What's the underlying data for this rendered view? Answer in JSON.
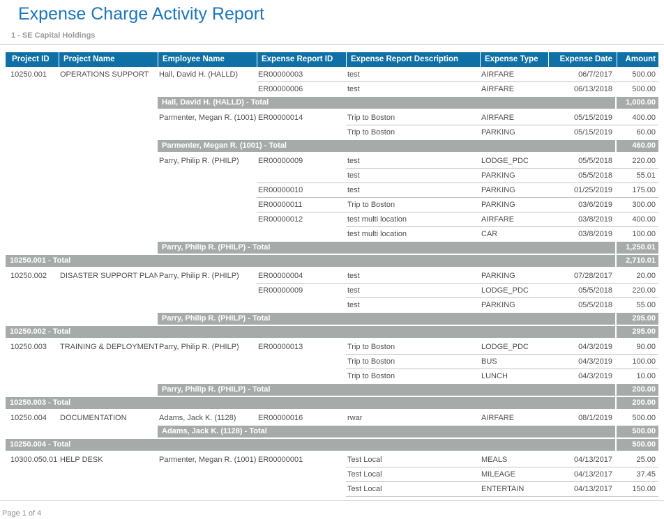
{
  "page": {
    "title": "Expense Charge Activity Report",
    "subtitle": "1 - SE Capital Holdings",
    "footer": "Page 1 of 4"
  },
  "colors": {
    "title_blue": "#1B76BD",
    "header_bar_blue": "#0F70A6",
    "total_bar_gray": "#A6ABA9",
    "subtitle_gray": "#9B9B9B"
  },
  "table": {
    "columns": [
      "Project ID",
      "Project Name",
      "Employee Name",
      "Expense Report ID",
      "Expense Report Description",
      "Expense Type",
      "Expense Date",
      "Amount"
    ],
    "rows": [
      {
        "type": "data",
        "cells": [
          "10250.001",
          "OPERATIONS SUPPORT",
          "Hall, David H. (HALLD)",
          "ER00000003",
          "test",
          "AIRFARE",
          "06/7/2017",
          "500.00"
        ]
      },
      {
        "type": "data",
        "cells": [
          "",
          "",
          "",
          "ER00000006",
          "test",
          "AIRFARE",
          "06/13/2018",
          "500.00"
        ]
      },
      {
        "type": "total",
        "level": "employee",
        "label": "Hall, David H. (HALLD) - Total",
        "amount": "1,000.00"
      },
      {
        "type": "data",
        "cells": [
          "",
          "",
          "Parmenter, Megan R. (1001)",
          "ER00000014",
          "Trip to Boston",
          "AIRFARE",
          "05/15/2019",
          "400.00"
        ]
      },
      {
        "type": "data",
        "cells": [
          "",
          "",
          "",
          "",
          "Trip to Boston",
          "PARKING",
          "05/15/2019",
          "60.00"
        ]
      },
      {
        "type": "total",
        "level": "employee",
        "label": "Parmenter, Megan R. (1001) - Total",
        "amount": "460.00"
      },
      {
        "type": "data",
        "cells": [
          "",
          "",
          "Parry, Philip R. (PHILP)",
          "ER00000009",
          "test",
          "LODGE_PDC",
          "05/5/2018",
          "220.00"
        ]
      },
      {
        "type": "data",
        "cells": [
          "",
          "",
          "",
          "",
          "test",
          "PARKING",
          "05/5/2018",
          "55.01"
        ]
      },
      {
        "type": "data",
        "cells": [
          "",
          "",
          "",
          "ER00000010",
          "test",
          "PARKING",
          "01/25/2019",
          "175.00"
        ]
      },
      {
        "type": "data",
        "cells": [
          "",
          "",
          "",
          "ER00000011",
          "Trip to Boston",
          "PARKING",
          "03/6/2019",
          "300.00"
        ]
      },
      {
        "type": "data",
        "cells": [
          "",
          "",
          "",
          "ER00000012",
          "test multi location",
          "AIRFARE",
          "03/8/2019",
          "400.00"
        ]
      },
      {
        "type": "data",
        "cells": [
          "",
          "",
          "",
          "",
          "test multi location",
          "CAR",
          "03/8/2019",
          "100.00"
        ]
      },
      {
        "type": "total",
        "level": "employee",
        "label": "Parry, Philip R. (PHILP) - Total",
        "amount": "1,250.01"
      },
      {
        "type": "total",
        "level": "project",
        "label": "10250.001 - Total",
        "amount": "2,710.01"
      },
      {
        "type": "data",
        "cells": [
          "10250.002",
          "DISASTER SUPPORT PLAN",
          "Parry, Philip R. (PHILP)",
          "ER00000004",
          "test",
          "PARKING",
          "07/28/2017",
          "20.00"
        ]
      },
      {
        "type": "data",
        "cells": [
          "",
          "",
          "",
          "ER00000009",
          "test",
          "LODGE_PDC",
          "05/5/2018",
          "220.00"
        ]
      },
      {
        "type": "data",
        "cells": [
          "",
          "",
          "",
          "",
          "test",
          "PARKING",
          "05/5/2018",
          "55.00"
        ]
      },
      {
        "type": "total",
        "level": "employee",
        "label": "Parry, Philip R. (PHILP) - Total",
        "amount": "295.00"
      },
      {
        "type": "total",
        "level": "project",
        "label": "10250.002 - Total",
        "amount": "295.00"
      },
      {
        "type": "data",
        "cells": [
          "10250.003",
          "TRAINING & DEPLOYMENT",
          "Parry, Philip R. (PHILP)",
          "ER00000013",
          "Trip to Boston",
          "LODGE_PDC",
          "04/3/2019",
          "90.00"
        ]
      },
      {
        "type": "data",
        "cells": [
          "",
          "",
          "",
          "",
          "Trip to Boston",
          "BUS",
          "04/3/2019",
          "100.00"
        ]
      },
      {
        "type": "data",
        "cells": [
          "",
          "",
          "",
          "",
          "Trip to Boston",
          "LUNCH",
          "04/3/2019",
          "10.00"
        ]
      },
      {
        "type": "total",
        "level": "employee",
        "label": "Parry, Philip R. (PHILP) - Total",
        "amount": "200.00"
      },
      {
        "type": "total",
        "level": "project",
        "label": "10250.003 - Total",
        "amount": "200.00"
      },
      {
        "type": "data",
        "cells": [
          "10250.004",
          "DOCUMENTATION",
          "Adams, Jack K. (1128)",
          "ER00000016",
          "rwar",
          "AIRFARE",
          "08/1/2019",
          "500.00"
        ]
      },
      {
        "type": "total",
        "level": "employee",
        "label": "Adams, Jack K. (1128) - Total",
        "amount": "500.00"
      },
      {
        "type": "total",
        "level": "project",
        "label": "10250.004 - Total",
        "amount": "500.00"
      },
      {
        "type": "data",
        "cells": [
          "10300.050.01",
          "HELP DESK",
          "Parmenter, Megan R. (1001)",
          "ER00000001",
          "Test Local",
          "MEALS",
          "04/13/2017",
          "25.00"
        ]
      },
      {
        "type": "data",
        "cells": [
          "",
          "",
          "",
          "",
          "Test Local",
          "MILEAGE",
          "04/13/2017",
          "37.45"
        ]
      },
      {
        "type": "data",
        "cells": [
          "",
          "",
          "",
          "",
          "Test Local",
          "ENTERTAIN",
          "04/13/2017",
          "150.00"
        ]
      }
    ]
  }
}
